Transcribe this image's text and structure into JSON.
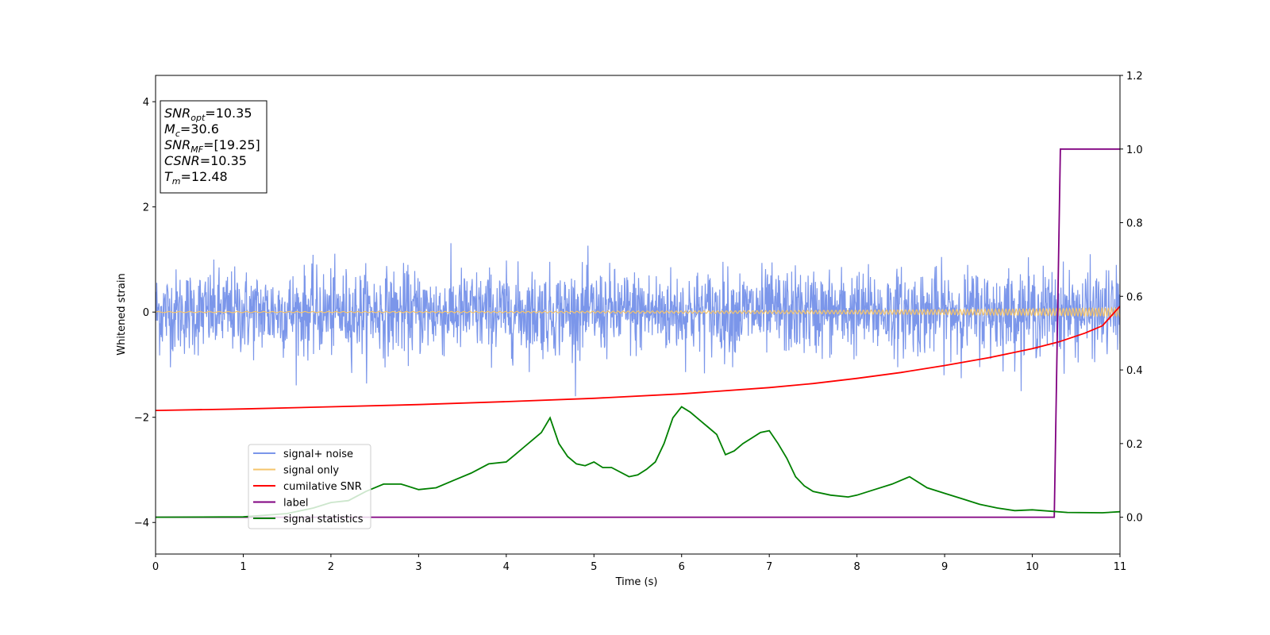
{
  "chart_data": {
    "type": "line",
    "xlabel": "Time (s)",
    "ylabel": "Whitened strain",
    "xlim": [
      0,
      11
    ],
    "ylim": [
      -4.6,
      4.5
    ],
    "y2lim": [
      -0.1,
      1.2
    ],
    "x_ticks": [
      0,
      1,
      2,
      3,
      4,
      5,
      6,
      7,
      8,
      9,
      10,
      11
    ],
    "y_ticks": [
      -4,
      -2,
      0,
      2,
      4
    ],
    "y2_ticks": [
      0.0,
      0.2,
      0.4,
      0.6,
      0.8,
      1.0,
      1.2
    ],
    "legend_position": "lower-left",
    "info_box": [
      {
        "main": "SNR",
        "sub": "opt",
        "value": "=10.35"
      },
      {
        "main": "M",
        "sub": "c",
        "value": "=30.6"
      },
      {
        "main": "SNR",
        "sub": "MF",
        "value": "=[19.25]"
      },
      {
        "main": "CSNR",
        "sub": "",
        "value": "=10.35"
      },
      {
        "main": "T",
        "sub": "m",
        "value": "=12.48"
      }
    ],
    "series": [
      {
        "name": "signal+ noise",
        "axis": "left",
        "color": "#7b96ea",
        "style": "noise",
        "amplitude": 0.4,
        "y_range": [
          -1.6,
          1.4
        ]
      },
      {
        "name": "signal only",
        "axis": "left",
        "color": "#f5c46b",
        "style": "chirp",
        "amplitude_start": 0.01,
        "amplitude_end": 0.08
      },
      {
        "name": "cumilative SNR",
        "axis": "right",
        "color": "#ff0000",
        "x": [
          0,
          1,
          2,
          3,
          4,
          5,
          6,
          7,
          7.5,
          8,
          8.5,
          9,
          9.5,
          10,
          10.3,
          10.6,
          10.8,
          11
        ],
        "y": [
          0.29,
          0.294,
          0.3,
          0.306,
          0.314,
          0.323,
          0.335,
          0.352,
          0.363,
          0.377,
          0.393,
          0.412,
          0.433,
          0.458,
          0.476,
          0.5,
          0.52,
          0.573
        ]
      },
      {
        "name": "label",
        "axis": "right",
        "color": "#800080",
        "x": [
          0,
          10.25,
          10.32,
          11
        ],
        "y": [
          0.0,
          0.0,
          1.0,
          1.0
        ]
      },
      {
        "name": "signal statistics",
        "axis": "right",
        "color": "#008000",
        "x": [
          0,
          1,
          1.5,
          1.8,
          2.0,
          2.2,
          2.4,
          2.6,
          2.8,
          3.0,
          3.2,
          3.4,
          3.6,
          3.8,
          4.0,
          4.1,
          4.2,
          4.3,
          4.4,
          4.5,
          4.6,
          4.7,
          4.8,
          4.9,
          5.0,
          5.1,
          5.2,
          5.4,
          5.5,
          5.6,
          5.7,
          5.8,
          5.9,
          6.0,
          6.1,
          6.2,
          6.3,
          6.4,
          6.5,
          6.6,
          6.7,
          6.8,
          6.9,
          7.0,
          7.1,
          7.2,
          7.3,
          7.4,
          7.5,
          7.7,
          7.9,
          8.0,
          8.2,
          8.4,
          8.6,
          8.8,
          9.0,
          9.2,
          9.4,
          9.6,
          9.8,
          10.0,
          10.4,
          10.8,
          11.0
        ],
        "y": [
          0.0,
          0.001,
          0.01,
          0.025,
          0.04,
          0.045,
          0.07,
          0.09,
          0.09,
          0.075,
          0.08,
          0.1,
          0.12,
          0.145,
          0.15,
          0.17,
          0.19,
          0.21,
          0.23,
          0.27,
          0.2,
          0.165,
          0.145,
          0.14,
          0.15,
          0.135,
          0.135,
          0.11,
          0.115,
          0.13,
          0.15,
          0.2,
          0.27,
          0.3,
          0.285,
          0.265,
          0.245,
          0.225,
          0.17,
          0.18,
          0.2,
          0.215,
          0.23,
          0.235,
          0.2,
          0.16,
          0.11,
          0.085,
          0.07,
          0.06,
          0.055,
          0.06,
          0.075,
          0.09,
          0.11,
          0.08,
          0.065,
          0.05,
          0.035,
          0.025,
          0.018,
          0.02,
          0.013,
          0.012,
          0.015
        ]
      }
    ]
  }
}
